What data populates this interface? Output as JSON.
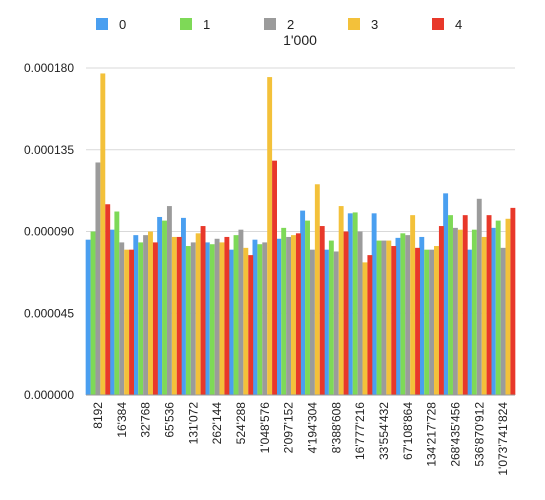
{
  "chart_data": {
    "type": "bar",
    "title": "1'000",
    "xlabel": "",
    "ylabel": "",
    "ylim": [
      0,
      0.00018
    ],
    "yticks": [
      "0.000000",
      "0.000045",
      "0.000090",
      "0.000135",
      "0.000180"
    ],
    "grid": true,
    "legend_position": "top",
    "categories": [
      "8192",
      "16'384",
      "32'768",
      "65'536",
      "131'072",
      "262'144",
      "524'288",
      "1'048'576",
      "2'097'152",
      "4'194'304",
      "8'388'608",
      "16'777'216",
      "33'554'432",
      "67'108'864",
      "134'217'728",
      "268'435'456",
      "536'870'912",
      "1'073'741'824"
    ],
    "series": [
      {
        "name": "0",
        "color": "#4a9ff0",
        "values": [
          8.55e-05,
          9.1e-05,
          8.8e-05,
          9.8e-05,
          9.75e-05,
          8.4e-05,
          8e-05,
          8.55e-05,
          8.6e-05,
          0.0001015,
          8e-05,
          0.0001,
          0.0001,
          8.65e-05,
          8.7e-05,
          0.000111,
          8e-05,
          9.2e-05
        ]
      },
      {
        "name": "1",
        "color": "#7ed957",
        "values": [
          9e-05,
          0.000101,
          8.4e-05,
          9.6e-05,
          8.2e-05,
          8.3e-05,
          8.8e-05,
          8.3e-05,
          9.2e-05,
          9.6e-05,
          8.5e-05,
          0.0001005,
          8.5e-05,
          8.9e-05,
          8e-05,
          9.9e-05,
          9.1e-05,
          9.6e-05
        ]
      },
      {
        "name": "2",
        "color": "#9b9b9b",
        "values": [
          0.000128,
          8.4e-05,
          8.8e-05,
          0.000104,
          8.4e-05,
          8.6e-05,
          9.1e-05,
          8.4e-05,
          8.7e-05,
          8e-05,
          7.9e-05,
          9e-05,
          8.5e-05,
          8.8e-05,
          8e-05,
          9.2e-05,
          0.000108,
          8.1e-05
        ]
      },
      {
        "name": "3",
        "color": "#f3c13a",
        "values": [
          0.000177,
          8e-05,
          9e-05,
          8.7e-05,
          8.9e-05,
          8.4e-05,
          8.1e-05,
          0.000175,
          8.8e-05,
          0.000116,
          0.000104,
          7.3e-05,
          8.5e-05,
          9.9e-05,
          8.2e-05,
          9.1e-05,
          8.7e-05,
          9.7e-05
        ]
      },
      {
        "name": "4",
        "color": "#e8382a",
        "values": [
          0.000105,
          8e-05,
          8.4e-05,
          8.7e-05,
          9.3e-05,
          8.7e-05,
          7.7e-05,
          0.000129,
          8.9e-05,
          9.3e-05,
          9e-05,
          7.7e-05,
          8.2e-05,
          8.1e-05,
          9.3e-05,
          9.9e-05,
          9.9e-05,
          0.000103
        ]
      }
    ]
  }
}
